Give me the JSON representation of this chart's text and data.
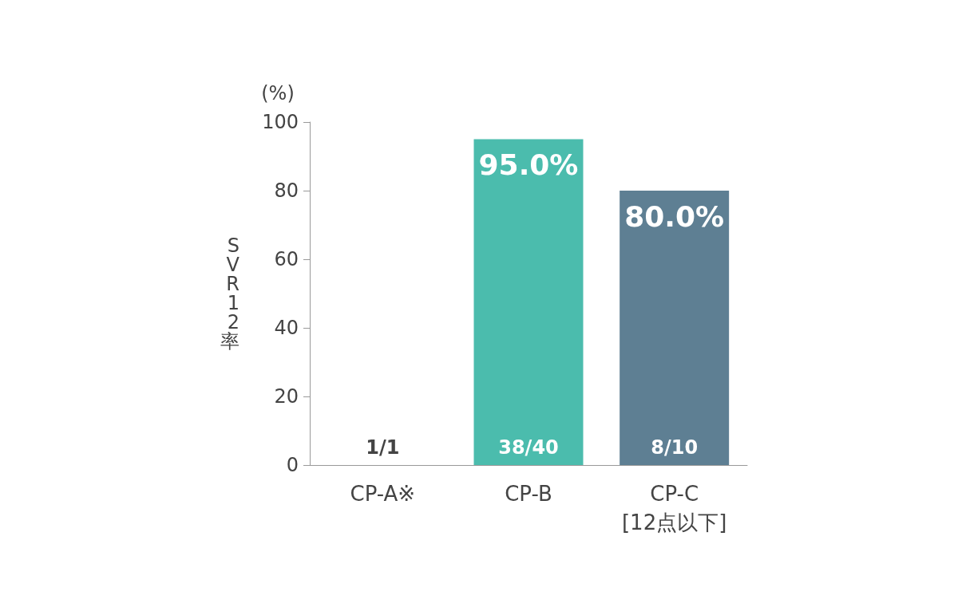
{
  "chart_data": {
    "type": "bar",
    "categories": [
      "CP-A※",
      "CP-B",
      "CP-C\n[12点以下]"
    ],
    "values": [
      null,
      95,
      80
    ],
    "colors": [
      "#4bbcad",
      "#4bbcad",
      "#5e7f93"
    ],
    "value_labels": [
      null,
      "95.0%",
      "80.0%"
    ],
    "ylabel": "SVR12率",
    "ylim": [
      0,
      100
    ],
    "yticks": [
      0,
      20,
      40,
      60,
      80,
      100
    ],
    "grid": false,
    "annotations": [
      "(%)",
      "1/1",
      "38/40",
      "8/10"
    ]
  }
}
